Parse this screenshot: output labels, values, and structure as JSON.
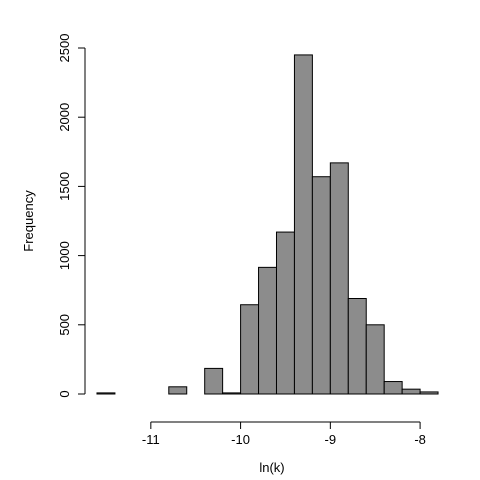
{
  "chart_data": {
    "type": "bar",
    "title": "",
    "xlabel": "ln(k)",
    "ylabel": "Frequency",
    "xlim": [
      -11.7,
      -7.6
    ],
    "ylim": [
      0,
      2500
    ],
    "x_ticks": [
      -11,
      -10,
      -9,
      -8
    ],
    "x_tick_labels": [
      "-11",
      "-10",
      "-9",
      "-8"
    ],
    "y_ticks": [
      0,
      500,
      1000,
      1500,
      2000,
      2500
    ],
    "y_tick_labels": [
      "0",
      "500",
      "1000",
      "1500",
      "2000",
      "2500"
    ],
    "grid": false,
    "bar_color": "#8c8c8c",
    "bins": [
      {
        "x0": -11.6,
        "x1": -11.4,
        "value": 8
      },
      {
        "x0": -11.4,
        "x1": -11.2,
        "value": 0
      },
      {
        "x0": -11.2,
        "x1": -11.0,
        "value": 0
      },
      {
        "x0": -11.0,
        "x1": -10.8,
        "value": 0
      },
      {
        "x0": -10.8,
        "x1": -10.6,
        "value": 52
      },
      {
        "x0": -10.6,
        "x1": -10.4,
        "value": 0
      },
      {
        "x0": -10.4,
        "x1": -10.2,
        "value": 185
      },
      {
        "x0": -10.2,
        "x1": -10.0,
        "value": 8
      },
      {
        "x0": -10.0,
        "x1": -9.8,
        "value": 645
      },
      {
        "x0": -9.8,
        "x1": -9.6,
        "value": 915
      },
      {
        "x0": -9.6,
        "x1": -9.4,
        "value": 1170
      },
      {
        "x0": -9.4,
        "x1": -9.2,
        "value": 2450
      },
      {
        "x0": -9.2,
        "x1": -9.0,
        "value": 1570
      },
      {
        "x0": -9.0,
        "x1": -8.8,
        "value": 1670
      },
      {
        "x0": -8.8,
        "x1": -8.6,
        "value": 690
      },
      {
        "x0": -8.6,
        "x1": -8.4,
        "value": 500
      },
      {
        "x0": -8.4,
        "x1": -8.2,
        "value": 90
      },
      {
        "x0": -8.2,
        "x1": -8.0,
        "value": 35
      },
      {
        "x0": -8.0,
        "x1": -7.8,
        "value": 15
      }
    ]
  }
}
